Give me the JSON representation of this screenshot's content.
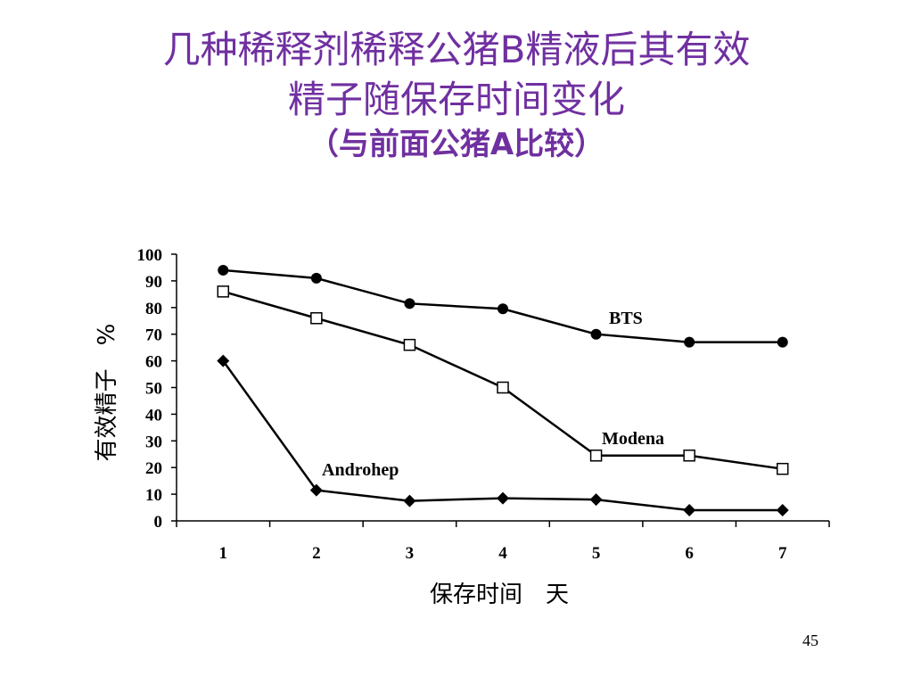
{
  "slide": {
    "title_line1": "几种稀释剂稀释公猪B精液后其有效",
    "title_line2": "精子随保存时间变化",
    "subtitle": "（与前面公猪A比较）",
    "page_number": "45"
  },
  "chart_data": {
    "type": "line",
    "title": "",
    "xlabel": "保存时间　天",
    "ylabel": "有效精子　%",
    "x": [
      1,
      2,
      3,
      4,
      5,
      6,
      7
    ],
    "xticks": [
      "1",
      "2",
      "3",
      "4",
      "5",
      "6",
      "7"
    ],
    "ylim": [
      0,
      100
    ],
    "yticks": [
      "0",
      "10",
      "20",
      "30",
      "40",
      "50",
      "60",
      "70",
      "80",
      "90",
      "100"
    ],
    "grid": false,
    "series": [
      {
        "name": "BTS",
        "values": [
          94,
          91,
          81.5,
          79.5,
          70,
          67,
          67
        ],
        "marker": "filled-circle",
        "color": "#000000"
      },
      {
        "name": "Modena",
        "values": [
          86,
          76,
          66,
          50,
          24.5,
          24.5,
          19.5
        ],
        "marker": "open-square",
        "color": "#000000"
      },
      {
        "name": "Androhep",
        "values": [
          60,
          11.5,
          7.5,
          8.5,
          8,
          4,
          4
        ],
        "marker": "filled-diamond",
        "color": "#000000"
      }
    ]
  }
}
